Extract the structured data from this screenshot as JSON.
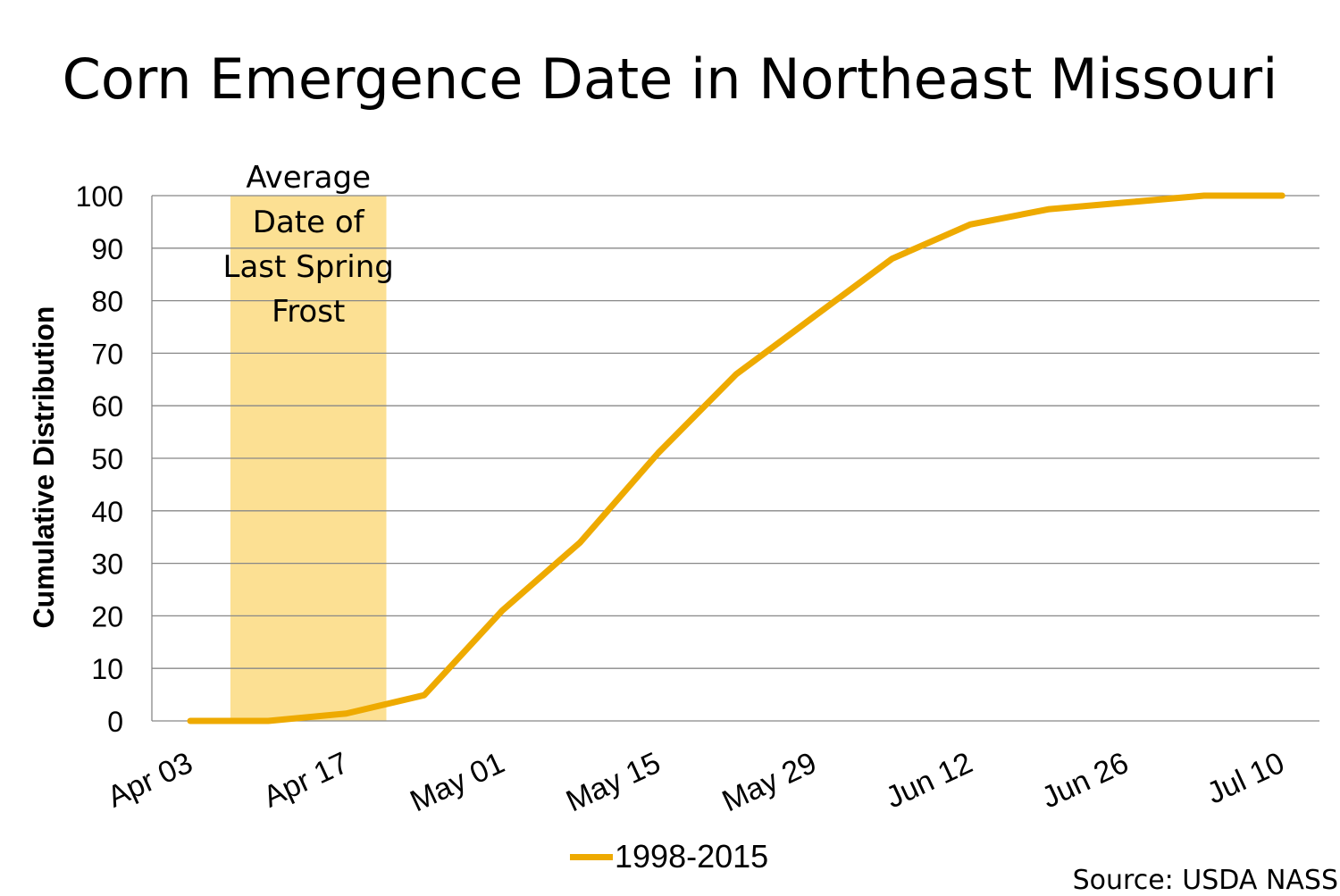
{
  "chart_data": {
    "type": "line",
    "title": "Corn Emergence Date in Northeast Missouri",
    "xlabel": "",
    "ylabel": "Cumulative Distribution",
    "ylim": [
      0,
      100
    ],
    "yticks": [
      "0",
      "10",
      "20",
      "30",
      "40",
      "50",
      "60",
      "70",
      "80",
      "90",
      "100"
    ],
    "xtick_labels": [
      "Apr 03",
      "Apr 17",
      "May 01",
      "May 15",
      "May 29",
      "Jun 12",
      "Jun 26",
      "Jul 10"
    ],
    "x_days_since_apr03": [
      0,
      7,
      14,
      21,
      28,
      35,
      42,
      49,
      56,
      63,
      70,
      77,
      84,
      91,
      98
    ],
    "x": [
      "Apr 03",
      "Apr 10",
      "Apr 17",
      "Apr 24",
      "May 01",
      "May 08",
      "May 15",
      "May 22",
      "May 29",
      "Jun 05",
      "Jun 12",
      "Jun 19",
      "Jun 26",
      "Jul 03",
      "Jul 10"
    ],
    "series": [
      {
        "name": "1998-2015",
        "color": "#EEAA00",
        "values": [
          0,
          0,
          1.4,
          4.9,
          21,
          34,
          51,
          66,
          77,
          88,
          94.5,
          97.4,
          98.7,
          100,
          100
        ]
      }
    ],
    "annotation": {
      "text_lines": [
        "Average",
        "Date of",
        "Last Spring",
        "Frost"
      ],
      "start_day": 3.6,
      "end_day": 17.6,
      "color": "#FCE093"
    },
    "grid": true,
    "legend_position": "bottom"
  },
  "source": "Source: USDA NASS"
}
